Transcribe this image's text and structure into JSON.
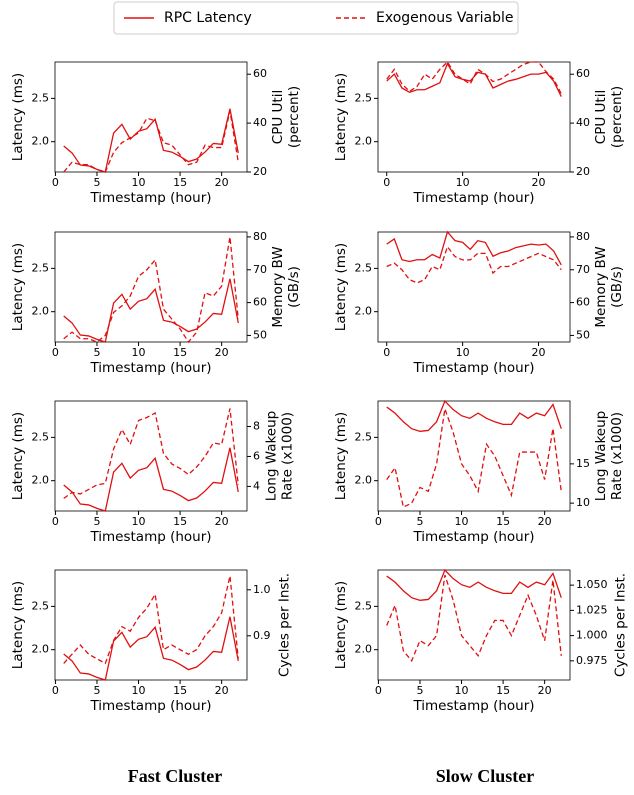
{
  "legend": {
    "items": [
      {
        "name": "RPC Latency",
        "style": "solid"
      },
      {
        "name": "Exogenous Variable",
        "style": "dashed"
      }
    ]
  },
  "column_titles": [
    "Fast Cluster",
    "Slow Cluster"
  ],
  "chart_data": [
    {
      "type": "line",
      "color": "#e01010",
      "xlabel": "Timestamp (hour)",
      "ylabel": "Latency (ms)",
      "y2label": [
        "CPU Util",
        "(percent)"
      ],
      "x": [
        1,
        2,
        3,
        4,
        5,
        6,
        7,
        8,
        9,
        10,
        11,
        12,
        13,
        14,
        15,
        16,
        17,
        18,
        19,
        20,
        21,
        22
      ],
      "xlim": [
        -0.05,
        23.05
      ],
      "xticks": [
        0,
        5,
        10,
        15,
        20
      ],
      "ylim": [
        1.65,
        2.92
      ],
      "yticks": [
        {
          "value": 2,
          "label": "2.0"
        },
        2.5
      ],
      "y2lim": [
        20,
        65
      ],
      "y2ticks": [
        20,
        40,
        60
      ],
      "series": [
        {
          "values": [
            1.95,
            1.87,
            1.73,
            1.72,
            1.68,
            1.65,
            2.1,
            2.2,
            2.03,
            2.12,
            2.15,
            2.26,
            1.9,
            1.88,
            1.83,
            1.77,
            1.8,
            1.88,
            1.98,
            1.97,
            2.38,
            1.87
          ]
        },
        {
          "axis": "y2",
          "values": [
            20,
            24,
            23,
            23,
            21,
            20,
            28,
            32,
            34,
            36,
            42,
            41,
            32,
            31,
            27,
            23,
            24,
            31,
            30,
            30,
            45,
            24
          ]
        }
      ]
    },
    {
      "type": "line",
      "color": "#e01010",
      "xlabel": "Timestamp (hour)",
      "ylabel": "Latency (ms)",
      "y2label": [
        "CPU Util",
        "(percent)"
      ],
      "x": [
        0,
        1,
        2,
        3,
        4,
        5,
        6,
        7,
        8,
        9,
        10,
        11,
        12,
        13,
        14,
        15,
        16,
        17,
        18,
        19,
        20,
        21,
        22,
        23
      ],
      "xlim": [
        -1.15,
        24.15
      ],
      "xticks": [
        0,
        10,
        20
      ],
      "ylim": [
        1.65,
        2.92
      ],
      "yticks": [
        {
          "value": 2,
          "label": "2.0"
        },
        2.5
      ],
      "y2lim": [
        20,
        65
      ],
      "y2ticks": [
        20,
        40,
        60
      ],
      "series": [
        {
          "values": [
            2.7,
            2.78,
            2.62,
            2.57,
            2.6,
            2.6,
            2.64,
            2.68,
            2.9,
            2.75,
            2.72,
            2.7,
            2.8,
            2.78,
            2.62,
            2.66,
            2.7,
            2.72,
            2.75,
            2.78,
            2.78,
            2.8,
            2.7,
            2.52
          ]
        },
        {
          "axis": "y2",
          "values": [
            58,
            62,
            56,
            53,
            55,
            60,
            58,
            62,
            65,
            60,
            58,
            56,
            62,
            60,
            57,
            58,
            60,
            62,
            64,
            65,
            65,
            61,
            58,
            52
          ]
        }
      ]
    },
    {
      "type": "line",
      "color": "#e01010",
      "xlabel": "Timestamp (hour)",
      "ylabel": "Latency (ms)",
      "y2label": [
        "Memory BW",
        "(GB/s)"
      ],
      "x": [
        1,
        2,
        3,
        4,
        5,
        6,
        7,
        8,
        9,
        10,
        11,
        12,
        13,
        14,
        15,
        16,
        17,
        18,
        19,
        20,
        21,
        22
      ],
      "xlim": [
        -0.05,
        23.05
      ],
      "xticks": [
        0,
        5,
        10,
        15,
        20
      ],
      "ylim": [
        1.65,
        2.92
      ],
      "yticks": [
        {
          "value": 2,
          "label": "2.0"
        },
        2.5
      ],
      "y2lim": [
        48,
        81.5
      ],
      "y2ticks": [
        50,
        60,
        70,
        80
      ],
      "series": [
        {
          "values": [
            1.95,
            1.87,
            1.73,
            1.72,
            1.68,
            1.65,
            2.1,
            2.2,
            2.03,
            2.12,
            2.15,
            2.26,
            1.9,
            1.88,
            1.83,
            1.77,
            1.8,
            1.88,
            1.98,
            1.97,
            2.38,
            1.87
          ]
        },
        {
          "axis": "y2",
          "values": [
            49,
            51,
            49,
            49,
            48,
            50,
            57,
            59,
            62,
            68,
            70,
            73,
            58,
            55,
            52,
            48,
            51,
            63,
            62,
            65,
            80,
            55
          ]
        }
      ]
    },
    {
      "type": "line",
      "color": "#e01010",
      "xlabel": "Timestamp (hour)",
      "ylabel": "Latency (ms)",
      "y2label": [
        "Memory BW",
        "(GB/s)"
      ],
      "x": [
        0,
        1,
        2,
        3,
        4,
        5,
        6,
        7,
        8,
        9,
        10,
        11,
        12,
        13,
        14,
        15,
        16,
        17,
        18,
        19,
        20,
        21,
        22,
        23
      ],
      "xlim": [
        -1.15,
        24.15
      ],
      "xticks": [
        0,
        10,
        20
      ],
      "ylim": [
        1.65,
        2.92
      ],
      "yticks": [
        {
          "value": 2,
          "label": "2.0"
        },
        2.5
      ],
      "y2lim": [
        48,
        81.5
      ],
      "y2ticks": [
        50,
        60,
        70,
        80
      ],
      "series": [
        {
          "values": [
            2.78,
            2.84,
            2.6,
            2.58,
            2.6,
            2.6,
            2.66,
            2.62,
            2.92,
            2.82,
            2.8,
            2.72,
            2.82,
            2.8,
            2.64,
            2.68,
            2.7,
            2.74,
            2.76,
            2.78,
            2.77,
            2.78,
            2.7,
            2.54
          ]
        },
        {
          "axis": "y2",
          "values": [
            71,
            72,
            70,
            67,
            66,
            67,
            71,
            70,
            77,
            74,
            73,
            73,
            75,
            75,
            69,
            71,
            71,
            72,
            73,
            74,
            75,
            74,
            73,
            70
          ]
        }
      ]
    },
    {
      "type": "line",
      "color": "#e01010",
      "xlabel": "Timestamp (hour)",
      "ylabel": "Latency (ms)",
      "y2label": [
        "Long Wakeup",
        "Rate (x1000)"
      ],
      "x": [
        1,
        2,
        3,
        4,
        5,
        6,
        7,
        8,
        9,
        10,
        11,
        12,
        13,
        14,
        15,
        16,
        17,
        18,
        19,
        20,
        21,
        22
      ],
      "xlim": [
        -0.05,
        23.05
      ],
      "xticks": [
        0,
        5,
        10,
        15,
        20
      ],
      "ylim": [
        1.65,
        2.92
      ],
      "yticks": [
        {
          "value": 2,
          "label": "2.0"
        },
        2.5
      ],
      "y2lim": [
        2.36,
        9.7
      ],
      "y2ticks": [
        4,
        6,
        8
      ],
      "series": [
        {
          "values": [
            1.95,
            1.87,
            1.73,
            1.72,
            1.68,
            1.65,
            2.1,
            2.2,
            2.03,
            2.12,
            2.15,
            2.26,
            1.9,
            1.88,
            1.83,
            1.77,
            1.8,
            1.88,
            1.98,
            1.97,
            2.38,
            1.87
          ]
        },
        {
          "axis": "y2",
          "values": [
            3.2,
            3.6,
            3.5,
            3.8,
            4.1,
            4.2,
            6.5,
            7.8,
            6.8,
            8.4,
            8.6,
            8.9,
            6.2,
            5.5,
            5.2,
            4.8,
            5.3,
            6.0,
            6.9,
            6.8,
            9.2,
            4.1
          ]
        }
      ]
    },
    {
      "type": "line",
      "color": "#e01010",
      "xlabel": "Timestamp (hour)",
      "ylabel": "Latency (ms)",
      "y2label": [
        "Long Wakeup",
        "Rate (x1000)"
      ],
      "x": [
        1,
        2,
        3,
        4,
        5,
        6,
        7,
        8,
        9,
        10,
        11,
        12,
        13,
        14,
        15,
        16,
        17,
        18,
        19,
        20,
        21,
        22
      ],
      "xlim": [
        -0.05,
        23.05
      ],
      "xticks": [
        0,
        5,
        10,
        15,
        20
      ],
      "ylim": [
        1.65,
        2.92
      ],
      "yticks": [
        {
          "value": 2,
          "label": "2.0"
        },
        2.5
      ],
      "y2lim": [
        9,
        23
      ],
      "y2ticks": [
        10,
        15
      ],
      "series": [
        {
          "values": [
            2.85,
            2.78,
            2.68,
            2.6,
            2.57,
            2.58,
            2.68,
            2.92,
            2.82,
            2.75,
            2.72,
            2.78,
            2.72,
            2.68,
            2.65,
            2.65,
            2.78,
            2.72,
            2.78,
            2.75,
            2.88,
            2.6
          ]
        },
        {
          "axis": "y2",
          "values": [
            13,
            14.5,
            9.5,
            10,
            12,
            11.5,
            15,
            22,
            19,
            15,
            13.5,
            11.5,
            17.5,
            16,
            13.5,
            11,
            16.5,
            16.5,
            16.5,
            13,
            19.5,
            11.5
          ]
        }
      ]
    },
    {
      "type": "line",
      "color": "#e01010",
      "xlabel": "Timestamp (hour)",
      "ylabel": "Latency (ms)",
      "y2label": [
        "Cycles per Inst."
      ],
      "x": [
        1,
        2,
        3,
        4,
        5,
        6,
        7,
        8,
        9,
        10,
        11,
        12,
        13,
        14,
        15,
        16,
        17,
        18,
        19,
        20,
        21,
        22
      ],
      "xlim": [
        -0.05,
        23.05
      ],
      "xticks": [
        0,
        5,
        10,
        15,
        20
      ],
      "ylim": [
        1.65,
        2.92
      ],
      "yticks": [
        {
          "value": 2,
          "label": "2.0"
        },
        2.5
      ],
      "y2lim": [
        0.804,
        1.043
      ],
      "y2ticks": [
        0.9,
        {
          "value": 1,
          "label": "1.0"
        }
      ],
      "series": [
        {
          "values": [
            1.95,
            1.87,
            1.73,
            1.72,
            1.68,
            1.65,
            2.1,
            2.2,
            2.03,
            2.12,
            2.15,
            2.26,
            1.9,
            1.88,
            1.83,
            1.77,
            1.8,
            1.88,
            1.98,
            1.97,
            2.38,
            1.87
          ]
        },
        {
          "axis": "y2",
          "values": [
            0.84,
            0.86,
            0.88,
            0.86,
            0.85,
            0.84,
            0.89,
            0.92,
            0.91,
            0.94,
            0.96,
            0.99,
            0.87,
            0.88,
            0.87,
            0.86,
            0.87,
            0.9,
            0.92,
            0.95,
            1.03,
            0.85
          ]
        }
      ]
    },
    {
      "type": "line",
      "color": "#e01010",
      "xlabel": "Timestamp (hour)",
      "ylabel": "Latency (ms)",
      "y2label": [
        "Cycles per Inst."
      ],
      "x": [
        1,
        2,
        3,
        4,
        5,
        6,
        7,
        8,
        9,
        10,
        11,
        12,
        13,
        14,
        15,
        16,
        17,
        18,
        19,
        20,
        21,
        22
      ],
      "xlim": [
        -0.05,
        23.05
      ],
      "xticks": [
        0,
        5,
        10,
        15,
        20
      ],
      "ylim": [
        1.65,
        2.92
      ],
      "yticks": [
        {
          "value": 2,
          "label": "2.0"
        },
        2.5
      ],
      "y2lim": [
        0.956,
        1.065
      ],
      "y2ticks": [
        0.975,
        {
          "value": 1,
          "label": "1.000"
        },
        1.025,
        {
          "value": 1.05,
          "label": "1.050"
        }
      ],
      "series": [
        {
          "values": [
            2.85,
            2.78,
            2.68,
            2.6,
            2.57,
            2.58,
            2.68,
            2.92,
            2.82,
            2.75,
            2.72,
            2.78,
            2.72,
            2.68,
            2.65,
            2.65,
            2.78,
            2.72,
            2.78,
            2.75,
            2.88,
            2.6
          ]
        },
        {
          "axis": "y2",
          "values": [
            1.01,
            1.03,
            0.985,
            0.975,
            0.995,
            0.99,
            1.0,
            1.06,
            1.035,
            1.0,
            0.99,
            0.98,
            1.0,
            1.015,
            1.015,
            1.0,
            1.02,
            1.04,
            1.02,
            0.995,
            1.055,
            0.98
          ]
        }
      ]
    }
  ]
}
